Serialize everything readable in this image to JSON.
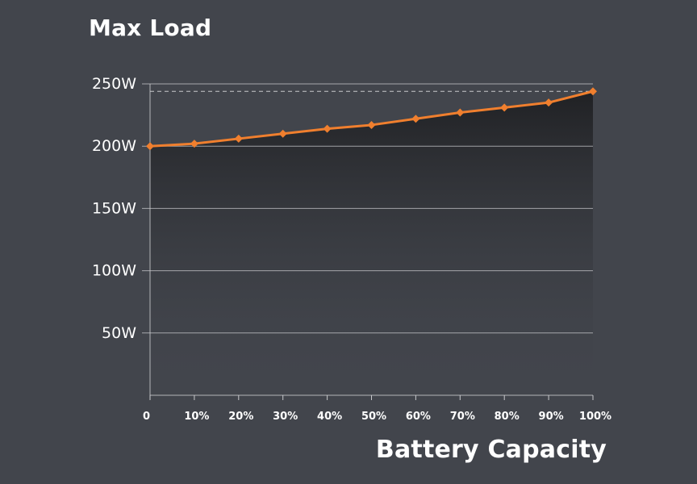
{
  "colors": {
    "background": "#42454c",
    "series_line": "#f07f2e",
    "area_top": "#202124",
    "gridline": "#c8c9cc",
    "text": "#ffffff"
  },
  "chart_data": {
    "type": "area",
    "title": "Max Load",
    "xlabel": "Battery Capacity",
    "ylabel": "",
    "x": [
      0,
      10,
      20,
      30,
      40,
      50,
      60,
      70,
      80,
      90,
      100
    ],
    "x_tick_labels": [
      "0",
      "10%",
      "20%",
      "30%",
      "40%",
      "50%",
      "60%",
      "70%",
      "80%",
      "90%",
      "100%"
    ],
    "y_ticks": [
      50,
      100,
      150,
      200,
      250
    ],
    "y_tick_labels": [
      "50W",
      "100W",
      "150W",
      "200W",
      "250W"
    ],
    "ylim": [
      0,
      250
    ],
    "xlim": [
      0,
      100
    ],
    "grid": true,
    "reference_line": 244,
    "series": [
      {
        "values": [
          200,
          202,
          206,
          210,
          214,
          217,
          222,
          227,
          231,
          235,
          244
        ]
      }
    ]
  }
}
